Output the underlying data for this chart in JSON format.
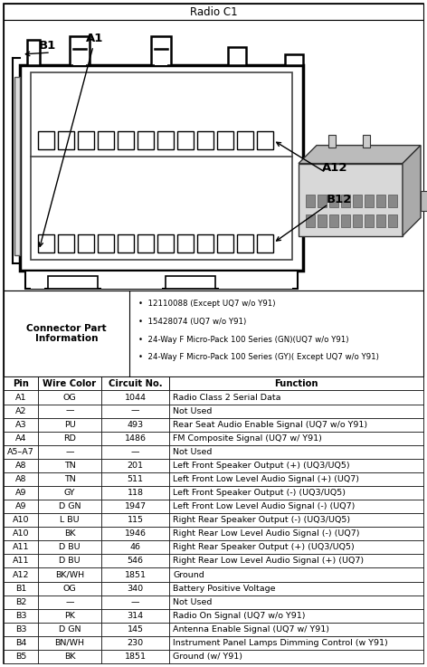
{
  "title": "Radio C1",
  "connector_label": "Connector Part Information",
  "connector_bullets": [
    "12110088 (Except UQ7 w/o Y91)",
    "15428074 (UQ7 w/o Y91)",
    "24-Way F Micro-Pack 100 Series (GN)(UQ7 w/o Y91)",
    "24-Way F Micro-Pack 100 Series (GY)( Except UQ7 w/o Y91)"
  ],
  "table_headers": [
    "Pin",
    "Wire Color",
    "Circuit No.",
    "Function"
  ],
  "table_rows": [
    [
      "A1",
      "OG",
      "1044",
      "Radio Class 2 Serial Data"
    ],
    [
      "A2",
      "—",
      "—",
      "Not Used"
    ],
    [
      "A3",
      "PU",
      "493",
      "Rear Seat Audio Enable Signal (UQ7 w/o Y91)"
    ],
    [
      "A4",
      "RD",
      "1486",
      "FM Composite Signal (UQ7 w/ Y91)"
    ],
    [
      "A5–A7",
      "—",
      "—",
      "Not Used"
    ],
    [
      "A8",
      "TN",
      "201",
      "Left Front Speaker Output (+) (UQ3/UQ5)"
    ],
    [
      "A8",
      "TN",
      "511",
      "Left Front Low Level Audio Signal (+) (UQ7)"
    ],
    [
      "A9",
      "GY",
      "118",
      "Left Front Speaker Output (-) (UQ3/UQ5)"
    ],
    [
      "A9",
      "D GN",
      "1947",
      "Left Front Low Level Audio Signal (-) (UQ7)"
    ],
    [
      "A10",
      "L BU",
      "115",
      "Right Rear Speaker Output (-) (UQ3/UQ5)"
    ],
    [
      "A10",
      "BK",
      "1946",
      "Right Rear Low Level Audio Signal (-) (UQ7)"
    ],
    [
      "A11",
      "D BU",
      "46",
      "Right Rear Speaker Output (+) (UQ3/UQ5)"
    ],
    [
      "A11",
      "D BU",
      "546",
      "Right Rear Low Level Audio Signal (+) (UQ7)"
    ],
    [
      "A12",
      "BK/WH",
      "1851",
      "Ground"
    ],
    [
      "B1",
      "OG",
      "340",
      "Battery Positive Voltage"
    ],
    [
      "B2",
      "—",
      "—",
      "Not Used"
    ],
    [
      "B3",
      "PK",
      "314",
      "Radio On Signal (UQ7 w/o Y91)"
    ],
    [
      "B3",
      "D GN",
      "145",
      "Antenna Enable Signal (UQ7 w/ Y91)"
    ],
    [
      "B4",
      "BN/WH",
      "230",
      "Instrument Panel Lamps Dimming Control (w Y91)"
    ],
    [
      "B5",
      "BK",
      "1851",
      "Ground (w/ Y91)"
    ]
  ],
  "bg_color": "#ffffff",
  "font_size": 6.8,
  "header_font_size": 7.2,
  "title_font_size": 8.5,
  "label_font_size": 9.5,
  "fig_width": 4.72,
  "fig_height": 7.37,
  "dpi": 100
}
